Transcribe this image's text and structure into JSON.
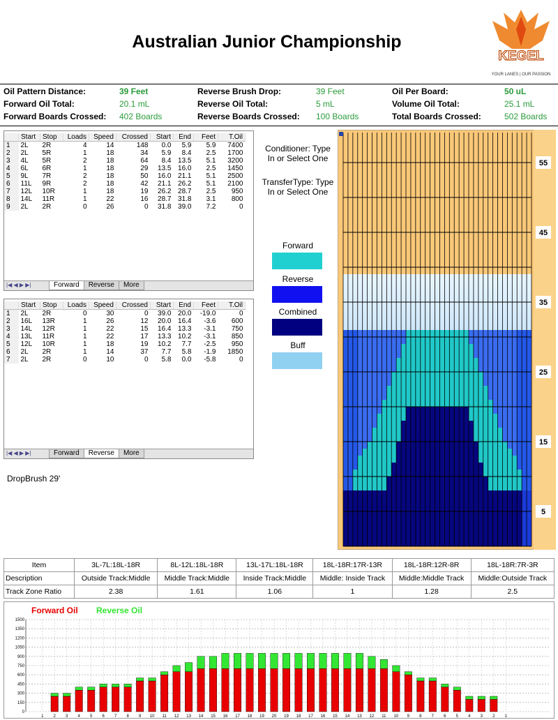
{
  "header": {
    "title": "Australian Junior Championship",
    "logo": "KEGEL",
    "tagline": "YOUR LANES | OUR PASSION"
  },
  "summary": [
    {
      "label": "Oil Pattern Distance:",
      "value": "39 Feet"
    },
    {
      "label": "Reverse Brush Drop:",
      "value": "39 Feet"
    },
    {
      "label": "Oil Per Board:",
      "value": "50 uL"
    },
    {
      "label": "Forward Oil Total:",
      "value": "20.1 mL"
    },
    {
      "label": "Reverse Oil Total:",
      "value": "5 mL"
    },
    {
      "label": "Volume Oil Total:",
      "value": "25.1 mL"
    },
    {
      "label": "Forward Boards Crossed:",
      "value": "402 Boards"
    },
    {
      "label": "Reverse Boards Crossed:",
      "value": "100 Boards"
    },
    {
      "label": "Total Boards Crossed:",
      "value": "502 Boards"
    }
  ],
  "tabs": [
    "Forward",
    "Reverse",
    "More"
  ],
  "forward_table": {
    "columns": [
      "Start",
      "Stop",
      "Loads",
      "Speed",
      "Crossed",
      "Start",
      "End",
      "Feet",
      "T.Oil"
    ],
    "rows": [
      [
        "1",
        "2L",
        "2R",
        "4",
        "14",
        "148",
        "0.0",
        "5.9",
        "5.9",
        "7400"
      ],
      [
        "2",
        "2L",
        "5R",
        "1",
        "18",
        "34",
        "5.9",
        "8.4",
        "2.5",
        "1700"
      ],
      [
        "3",
        "4L",
        "5R",
        "2",
        "18",
        "64",
        "8.4",
        "13.5",
        "5.1",
        "3200"
      ],
      [
        "4",
        "6L",
        "6R",
        "1",
        "18",
        "29",
        "13.5",
        "16.0",
        "2.5",
        "1450"
      ],
      [
        "5",
        "9L",
        "7R",
        "2",
        "18",
        "50",
        "16.0",
        "21.1",
        "5.1",
        "2500"
      ],
      [
        "6",
        "11L",
        "9R",
        "2",
        "18",
        "42",
        "21.1",
        "26.2",
        "5.1",
        "2100"
      ],
      [
        "7",
        "12L",
        "10R",
        "1",
        "18",
        "19",
        "26.2",
        "28.7",
        "2.5",
        "950"
      ],
      [
        "8",
        "14L",
        "11R",
        "1",
        "22",
        "16",
        "28.7",
        "31.8",
        "3.1",
        "800"
      ],
      [
        "9",
        "2L",
        "2R",
        "0",
        "26",
        "0",
        "31.8",
        "39.0",
        "7.2",
        "0"
      ]
    ]
  },
  "reverse_table": {
    "columns": [
      "Start",
      "Stop",
      "Loads",
      "Speed",
      "Crossed",
      "Start",
      "End",
      "Feet",
      "T.Oil"
    ],
    "rows": [
      [
        "1",
        "2L",
        "2R",
        "0",
        "30",
        "0",
        "39.0",
        "20.0",
        "-19.0",
        "0"
      ],
      [
        "2",
        "16L",
        "13R",
        "1",
        "26",
        "12",
        "20.0",
        "16.4",
        "-3.6",
        "600"
      ],
      [
        "3",
        "14L",
        "12R",
        "1",
        "22",
        "15",
        "16.4",
        "13.3",
        "-3.1",
        "750"
      ],
      [
        "4",
        "13L",
        "11R",
        "1",
        "22",
        "17",
        "13.3",
        "10.2",
        "-3.1",
        "850"
      ],
      [
        "5",
        "12L",
        "10R",
        "1",
        "18",
        "19",
        "10.2",
        "7.7",
        "-2.5",
        "950"
      ],
      [
        "6",
        "2L",
        "2R",
        "1",
        "14",
        "37",
        "7.7",
        "5.8",
        "-1.9",
        "1850"
      ],
      [
        "7",
        "2L",
        "2R",
        "0",
        "10",
        "0",
        "5.8",
        "0.0",
        "-5.8",
        "0"
      ]
    ]
  },
  "legend": {
    "conditioner": "Conditioner: Type In or Select One",
    "transfer": "TransferType: Type In or Select One",
    "items": [
      "Forward",
      "Reverse",
      "Combined",
      "Buff"
    ]
  },
  "drop_brush": "DropBrush 29'",
  "pattern": {
    "distance_labels": [
      55,
      45,
      35,
      25,
      15,
      5
    ]
  },
  "track_table": {
    "header": [
      "Item",
      "3L-7L:18L-18R",
      "8L-12L:18L-18R",
      "13L-17L:18L-18R",
      "18L-18R:17R-13R",
      "18L-18R:12R-8R",
      "18L-18R:7R-3R"
    ],
    "rows": [
      [
        "Description",
        "Outside Track:Middle",
        "Middle Track:Middle",
        "Inside Track:Middle",
        "Middle: Inside Track",
        "Middle:Middle Track",
        "Middle:Outside Track"
      ],
      [
        "Track Zone Ratio",
        "2.38",
        "1.61",
        "1.06",
        "1",
        "1.28",
        "2.5"
      ]
    ]
  },
  "chart_data": {
    "type": "bar",
    "stacked": true,
    "categories": [
      1,
      2,
      3,
      4,
      5,
      6,
      7,
      8,
      9,
      10,
      11,
      12,
      13,
      14,
      15,
      16,
      17,
      18,
      19,
      20,
      19,
      18,
      17,
      16,
      15,
      14,
      13,
      12,
      11,
      10,
      9,
      8,
      7,
      6,
      5,
      4,
      3,
      2,
      1
    ],
    "series": [
      {
        "name": "Forward Oil",
        "color": "#e80000",
        "values": [
          0,
          250,
          250,
          350,
          350,
          400,
          400,
          400,
          500,
          500,
          600,
          650,
          650,
          700,
          700,
          700,
          700,
          700,
          700,
          700,
          700,
          700,
          700,
          700,
          700,
          700,
          700,
          700,
          700,
          650,
          600,
          500,
          500,
          400,
          350,
          200,
          200,
          200,
          0
        ]
      },
      {
        "name": "Reverse Oil",
        "color": "#33e633",
        "values": [
          0,
          50,
          50,
          50,
          50,
          50,
          50,
          50,
          50,
          50,
          50,
          100,
          150,
          200,
          200,
          250,
          250,
          250,
          250,
          250,
          250,
          250,
          250,
          250,
          250,
          250,
          250,
          200,
          150,
          100,
          50,
          50,
          50,
          50,
          50,
          50,
          50,
          50,
          0
        ]
      }
    ],
    "ylim": [
      0,
      1500
    ],
    "yticks": [
      0,
      150,
      300,
      450,
      600,
      750,
      900,
      1050,
      1200,
      1350,
      1500
    ],
    "grid": true
  }
}
